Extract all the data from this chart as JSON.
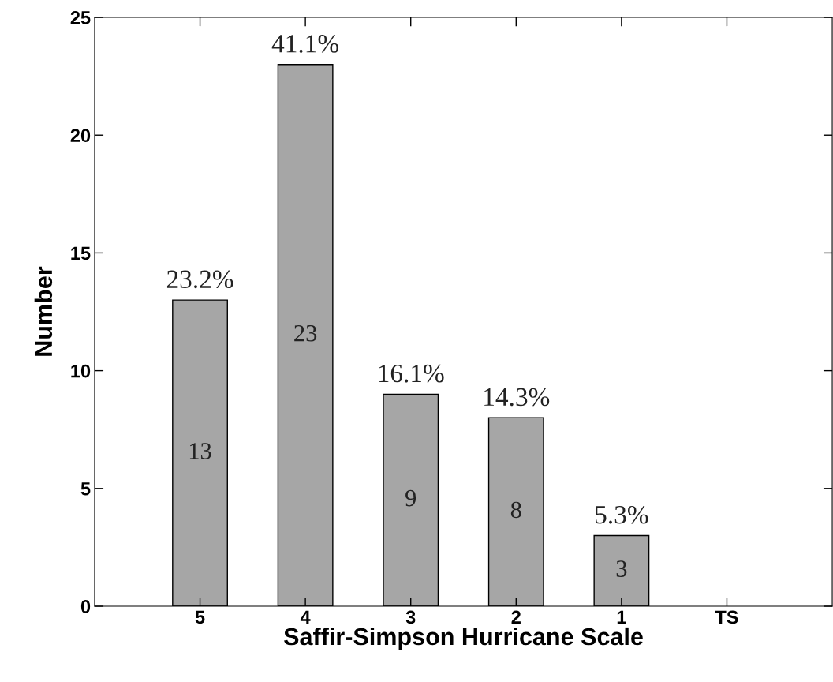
{
  "chart_data": {
    "type": "bar",
    "xlabel": "Saffir-Simpson Hurricane Scale",
    "ylabel": "Number",
    "categories": [
      "5",
      "4",
      "3",
      "2",
      "1",
      "TS"
    ],
    "values": [
      13,
      23,
      9,
      8,
      3,
      0
    ],
    "color": "#a6a6a6",
    "ylim": [
      0,
      25
    ],
    "yticks": [
      0,
      5,
      10,
      15,
      20,
      25
    ],
    "value_labels": [
      "13",
      "23",
      "9",
      "8",
      "3",
      null
    ],
    "annotations": [
      {
        "text": "23.2%",
        "x": "5",
        "y": 13
      },
      {
        "text": "41.1%",
        "x": "4",
        "y": 23
      },
      {
        "text": "16.1%",
        "x": "3",
        "y": 9
      },
      {
        "text": "14.3%",
        "x": "2",
        "y": 8
      },
      {
        "text": "5.3%",
        "x": "1",
        "y": 3
      }
    ]
  }
}
